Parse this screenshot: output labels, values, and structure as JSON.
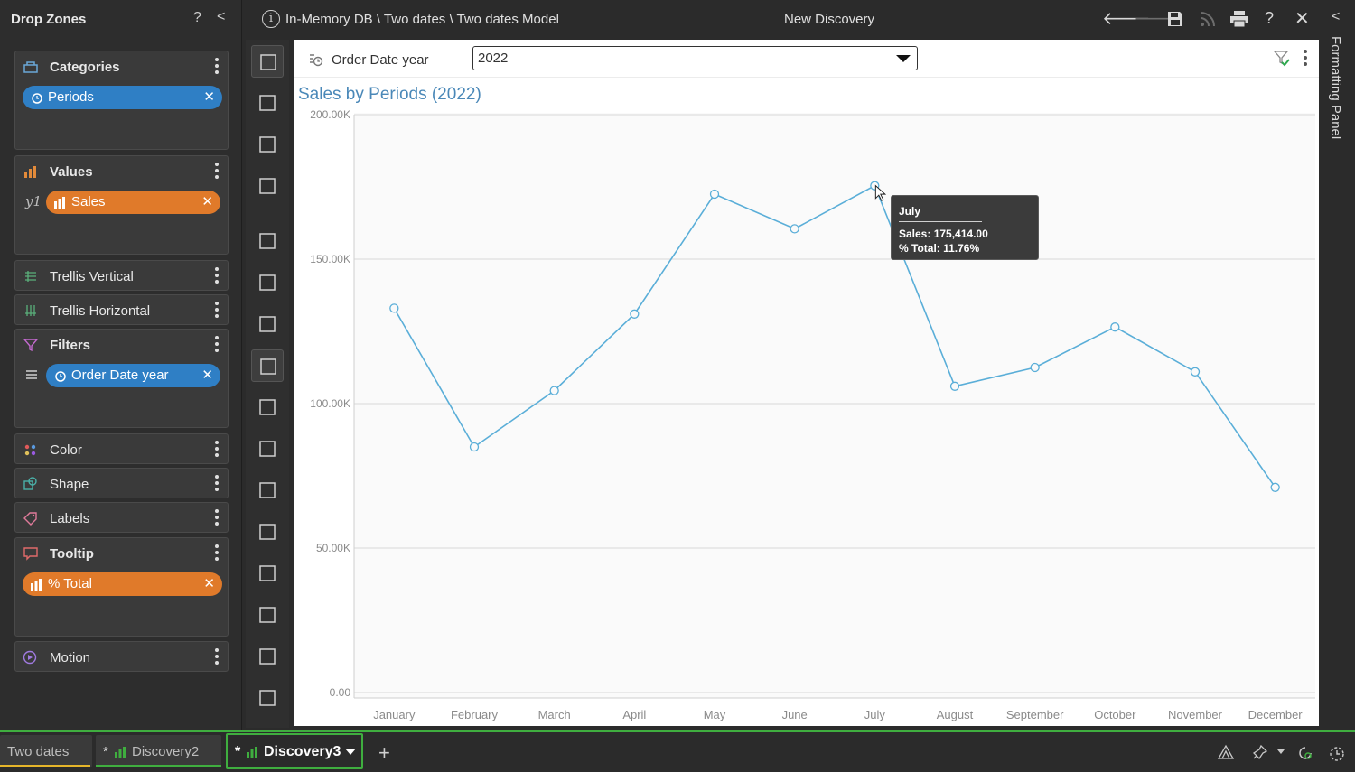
{
  "drop_zones": {
    "title": "Drop Zones",
    "help": "?",
    "collapse": "<",
    "categories": {
      "label": "Categories",
      "pill": "Periods"
    },
    "values": {
      "label": "Values",
      "axis": "y1",
      "pill": "Sales"
    },
    "trellis_vertical": {
      "label": "Trellis Vertical"
    },
    "trellis_horizontal": {
      "label": "Trellis Horizontal"
    },
    "filters": {
      "label": "Filters",
      "pill": "Order Date year"
    },
    "color": {
      "label": "Color"
    },
    "shape": {
      "label": "Shape"
    },
    "labels": {
      "label": "Labels"
    },
    "tooltip": {
      "label": "Tooltip",
      "pill": "% Total"
    },
    "motion": {
      "label": "Motion"
    }
  },
  "topbar": {
    "breadcrumb": "In-Memory DB \\ Two dates \\ Two dates Model",
    "title": "New Discovery",
    "info": "i"
  },
  "formatting_panel": {
    "label": "Formatting Panel"
  },
  "filter_bar": {
    "label": "Order Date year",
    "selected": "2022"
  },
  "tooltip": {
    "title": "July",
    "line1": "Sales: 175,414.00",
    "line2": "% Total: 11.76%"
  },
  "bottom_tabs": [
    {
      "label": "Two dates"
    },
    {
      "label": "* ",
      "name": "Discovery2"
    },
    {
      "label": "* ",
      "name": "Discovery3"
    }
  ],
  "colors": {
    "line": "#5aaed8",
    "title": "#4a88b8",
    "pill_blue": "#2f7fc5",
    "pill_orange": "#e07a2a",
    "active_tab": "#3fae3f"
  },
  "chart_data": {
    "type": "line",
    "title": "Sales by Periods (2022)",
    "categories": [
      "January",
      "February",
      "March",
      "April",
      "May",
      "June",
      "July",
      "August",
      "September",
      "October",
      "November",
      "December"
    ],
    "series": [
      {
        "values": [
          133000,
          85000,
          104500,
          131000,
          172500,
          160500,
          175414,
          106000,
          112500,
          126500,
          111000,
          71000
        ]
      }
    ],
    "ylim": [
      0,
      200000
    ],
    "yticks": [
      "0.00",
      "50.00K",
      "100.00K",
      "150.00K",
      "200.00K"
    ],
    "grid": true
  }
}
